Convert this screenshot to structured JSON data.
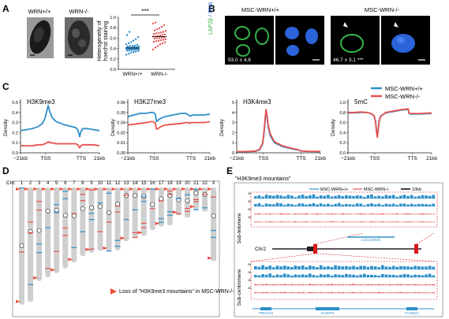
{
  "colors": {
    "wt": "#2e8fc9",
    "ko": "#e8514f",
    "green": "#37b34a",
    "blue_nuc": "#2b63d9",
    "axis": "#231f20",
    "gray_chr": "#cfcfcf",
    "flag": "#ed4f3d",
    "highlight": "#d7191c"
  },
  "panels": {
    "a": "A",
    "b": "B",
    "c": "C",
    "d": "D",
    "e": "E"
  },
  "panel_a": {
    "label_wt": "WRN+/+",
    "label_ko": "WRN-/-",
    "ylabel_line1": "Heterogeneity of",
    "ylabel_line2": "hoechst staining",
    "yticks": [
      "0.0",
      "0.2",
      "0.4",
      "0.6",
      "0.8",
      "1.0"
    ],
    "xcats": [
      "WRN+/+",
      "WRN-/-"
    ],
    "sig": "***"
  },
  "panel_b": {
    "title_wt": "MSC-WRN+/+",
    "title_ko": "MSC-WRN-/-",
    "stain_green": "LAP2β",
    "stain_sep": " / ",
    "stain_blue": "DNA",
    "value_wt": "93.0 ± 4.6",
    "value_ko": "46.7 ± 3.1",
    "value_ko_sig": "***"
  },
  "panel_c": {
    "legend": [
      "MSC-WRN+/+",
      "MSC-WRN-/-"
    ],
    "ylabel": "Density",
    "xticks": [
      "−21kb",
      "TSS",
      "TTS",
      "21kb"
    ]
  },
  "panel_d": {
    "chr_label": "Chr.",
    "chromosomes": [
      "1",
      "2",
      "3",
      "4",
      "5",
      "6",
      "7",
      "8",
      "9",
      "10",
      "11",
      "12",
      "13",
      "14",
      "15",
      "16",
      "17",
      "18",
      "19",
      "20",
      "21",
      "22",
      "X"
    ],
    "legend_text": "Loss of \"H3K9me3 mountains\" in MSC-WRN-/-"
  },
  "panel_e": {
    "title": "\"H3K9me3 mountains\"",
    "legend_wt": "MSC-WRN+/+",
    "legend_ko": "MSC-WRN-/-",
    "scale": "10kb",
    "side_top": "Sub-telomere",
    "side_bottom": "Sub-centromere",
    "chr": "Chr2",
    "track_max": "26",
    "gene_top": "LOC100505",
    "genes_bottom": [
      "PRKAG2",
      "KCNIP3",
      "FAHD2A"
    ]
  },
  "chart_data": [
    {
      "type": "scatter",
      "title": "",
      "ylabel": "Heterogeneity of hoechst staining",
      "categories": [
        "WRN+/+",
        "WRN-/-"
      ],
      "ylim": [
        0,
        1.0
      ],
      "series": [
        {
          "name": "WRN+/+",
          "values": [
            0.28,
            0.3,
            0.32,
            0.33,
            0.34,
            0.35,
            0.36,
            0.36,
            0.37,
            0.37,
            0.38,
            0.38,
            0.38,
            0.39,
            0.39,
            0.39,
            0.4,
            0.4,
            0.4,
            0.4,
            0.41,
            0.41,
            0.41,
            0.42,
            0.42,
            0.42,
            0.43,
            0.43,
            0.44,
            0.44,
            0.45,
            0.45,
            0.46,
            0.47,
            0.48,
            0.5,
            0.52,
            0.55,
            0.58,
            0.62,
            0.66,
            0.72
          ]
        },
        {
          "name": "WRN-/-",
          "values": [
            0.38,
            0.42,
            0.45,
            0.48,
            0.5,
            0.52,
            0.53,
            0.54,
            0.55,
            0.56,
            0.57,
            0.58,
            0.59,
            0.6,
            0.6,
            0.61,
            0.62,
            0.63,
            0.63,
            0.64,
            0.65,
            0.66,
            0.67,
            0.68,
            0.69,
            0.7,
            0.71,
            0.72,
            0.74,
            0.75,
            0.77,
            0.79,
            0.82,
            0.85,
            0.88,
            0.9
          ]
        }
      ]
    },
    {
      "type": "line",
      "title": "H3K9me3",
      "xlabel": "",
      "ylabel": "Density",
      "x": [
        -1.0,
        -0.85,
        -0.7,
        -0.55,
        -0.45,
        -0.38,
        -0.33,
        -0.3,
        -0.26,
        -0.2,
        -0.1,
        0.1,
        0.3,
        0.4,
        0.45,
        0.48,
        0.5,
        0.53,
        0.58,
        0.7,
        0.85,
        1.0
      ],
      "ylim": [
        0,
        0.5
      ],
      "series": [
        {
          "name": "MSC-WRN+/+",
          "values": [
            0.22,
            0.23,
            0.24,
            0.26,
            0.29,
            0.34,
            0.42,
            0.47,
            0.41,
            0.35,
            0.31,
            0.28,
            0.26,
            0.25,
            0.23,
            0.19,
            0.16,
            0.21,
            0.24,
            0.24,
            0.23,
            0.22
          ]
        },
        {
          "name": "MSC-WRN-/-",
          "values": [
            0.07,
            0.07,
            0.07,
            0.08,
            0.08,
            0.09,
            0.1,
            0.11,
            0.1,
            0.1,
            0.09,
            0.09,
            0.09,
            0.09,
            0.08,
            0.06,
            0.05,
            0.07,
            0.08,
            0.08,
            0.08,
            0.07
          ]
        }
      ]
    },
    {
      "type": "line",
      "title": "H3K27me3",
      "xlabel": "",
      "ylabel": "Density",
      "x": [
        -1.0,
        -0.85,
        -0.7,
        -0.55,
        -0.45,
        -0.38,
        -0.33,
        -0.3,
        -0.26,
        -0.2,
        -0.1,
        0.1,
        0.3,
        0.4,
        0.45,
        0.48,
        0.5,
        0.53,
        0.58,
        0.7,
        0.85,
        1.0
      ],
      "ylim": [
        0,
        0.06
      ],
      "series": [
        {
          "name": "MSC-WRN+/+",
          "values": [
            0.043,
            0.045,
            0.047,
            0.047,
            0.048,
            0.048,
            0.046,
            0.037,
            0.039,
            0.041,
            0.043,
            0.045,
            0.047,
            0.047,
            0.046,
            0.045,
            0.044,
            0.044,
            0.045,
            0.045,
            0.045,
            0.046
          ]
        },
        {
          "name": "MSC-WRN-/-",
          "values": [
            0.033,
            0.034,
            0.035,
            0.036,
            0.037,
            0.037,
            0.035,
            0.028,
            0.029,
            0.031,
            0.033,
            0.034,
            0.035,
            0.036,
            0.036,
            0.036,
            0.035,
            0.036,
            0.036,
            0.036,
            0.036,
            0.037
          ]
        }
      ]
    },
    {
      "type": "line",
      "title": "H3K4me3",
      "xlabel": "",
      "ylabel": "Density",
      "x": [
        -1.0,
        -0.85,
        -0.7,
        -0.55,
        -0.45,
        -0.38,
        -0.35,
        -0.32,
        -0.3,
        -0.28,
        -0.25,
        -0.2,
        -0.1,
        0.1,
        0.3,
        0.45,
        0.5,
        0.55,
        0.7,
        1.0
      ],
      "ylim": [
        0,
        5
      ],
      "series": [
        {
          "name": "MSC-WRN+/+",
          "values": [
            0.1,
            0.1,
            0.12,
            0.15,
            0.3,
            0.9,
            1.8,
            3.2,
            4.1,
            3.6,
            2.6,
            1.7,
            1.0,
            0.6,
            0.42,
            0.3,
            0.22,
            0.18,
            0.14,
            0.12
          ]
        },
        {
          "name": "MSC-WRN-/-",
          "values": [
            0.12,
            0.12,
            0.14,
            0.18,
            0.35,
            1.0,
            2.0,
            3.4,
            4.3,
            3.8,
            2.8,
            1.9,
            1.1,
            0.68,
            0.46,
            0.32,
            0.24,
            0.19,
            0.15,
            0.13
          ]
        }
      ]
    },
    {
      "type": "line",
      "title": "5mC",
      "xlabel": "",
      "ylabel": "Density",
      "x": [
        -1.0,
        -0.85,
        -0.7,
        -0.55,
        -0.45,
        -0.38,
        -0.34,
        -0.32,
        -0.3,
        -0.28,
        -0.26,
        -0.22,
        -0.1,
        0.1,
        0.3,
        0.44,
        0.46,
        0.48,
        0.55,
        0.7,
        1.0
      ],
      "ylim": [
        0,
        1.0
      ],
      "series": [
        {
          "name": "MSC-WRN+/+",
          "values": [
            0.79,
            0.79,
            0.8,
            0.8,
            0.78,
            0.74,
            0.62,
            0.45,
            0.33,
            0.45,
            0.62,
            0.73,
            0.79,
            0.82,
            0.85,
            0.86,
            0.78,
            0.77,
            0.77,
            0.77,
            0.78
          ]
        },
        {
          "name": "MSC-WRN-/-",
          "values": [
            0.8,
            0.8,
            0.81,
            0.8,
            0.78,
            0.74,
            0.6,
            0.43,
            0.31,
            0.43,
            0.6,
            0.72,
            0.8,
            0.83,
            0.86,
            0.87,
            0.79,
            0.78,
            0.78,
            0.78,
            0.79
          ]
        }
      ]
    },
    {
      "type": "bar",
      "title": "",
      "xlabel": "Chr.",
      "ylabel": "",
      "categories": [
        "1",
        "2",
        "3",
        "4",
        "5",
        "6",
        "7",
        "8",
        "9",
        "10",
        "11",
        "12",
        "13",
        "14",
        "15",
        "16",
        "17",
        "18",
        "19",
        "20",
        "21",
        "22",
        "X"
      ],
      "values": [
        248,
        242,
        198,
        190,
        181,
        171,
        159,
        145,
        138,
        134,
        135,
        133,
        114,
        107,
        102,
        90,
        83,
        80,
        59,
        64,
        47,
        51,
        156
      ],
      "centromere_mb": [
        123,
        93,
        91,
        50,
        48,
        59,
        60,
        45,
        43,
        40,
        53,
        35,
        17,
        17,
        19,
        36,
        24,
        17,
        26,
        28,
        12,
        15,
        60
      ]
    },
    {
      "type": "area",
      "title": "\"H3K9me3 mountains\"",
      "xlabel": "",
      "ylabel": "",
      "ylim": [
        0,
        26
      ],
      "series": [
        {
          "name": "MSC-WRN+/+ (Sub-telomere)",
          "values": [
            10,
            13,
            7,
            14,
            11,
            9,
            15,
            12,
            8,
            13,
            10,
            6,
            12,
            15,
            9,
            11,
            14,
            8,
            12,
            10,
            13,
            7,
            11,
            14,
            9,
            12,
            10,
            8,
            13,
            11,
            6,
            12,
            14,
            9,
            11,
            8,
            13,
            10,
            12,
            7,
            11,
            14,
            9,
            12,
            8,
            10,
            13,
            11,
            9,
            12
          ]
        },
        {
          "name": "MSC-WRN-/- (Sub-telomere)",
          "values": [
            2,
            3,
            1,
            2,
            3,
            2,
            1,
            3,
            2,
            2,
            1,
            3,
            2,
            2,
            3,
            1,
            2,
            3,
            2,
            1,
            2,
            3,
            2,
            1,
            3,
            2,
            2,
            1,
            2,
            3,
            2,
            1,
            3,
            2,
            2,
            3,
            1,
            2,
            2,
            3,
            1,
            2,
            3,
            2,
            1,
            2,
            3,
            2,
            2,
            1
          ]
        },
        {
          "name": "MSC-WRN+/+ (Sub-centromere)",
          "values": [
            12,
            9,
            14,
            11,
            15,
            8,
            13,
            10,
            16,
            12,
            9,
            14,
            11,
            13,
            10,
            15,
            12,
            8,
            14,
            11,
            13,
            9,
            15,
            12,
            10,
            14,
            11,
            13,
            9,
            12,
            15,
            10,
            13,
            11,
            8,
            14,
            12,
            10,
            13,
            9,
            11,
            14,
            12,
            10,
            13,
            11,
            9,
            12,
            14,
            10
          ]
        },
        {
          "name": "MSC-WRN-/- (Sub-centromere)",
          "values": [
            3,
            2,
            3,
            4,
            2,
            3,
            2,
            3,
            4,
            2,
            3,
            2,
            3,
            3,
            2,
            4,
            3,
            2,
            3,
            2,
            3,
            4,
            2,
            3,
            3,
            2,
            3,
            4,
            2,
            3,
            2,
            3,
            3,
            2,
            4,
            3,
            2,
            3,
            2,
            3,
            4,
            2,
            3,
            2,
            3,
            3,
            2,
            3,
            2,
            3
          ]
        }
      ]
    }
  ]
}
